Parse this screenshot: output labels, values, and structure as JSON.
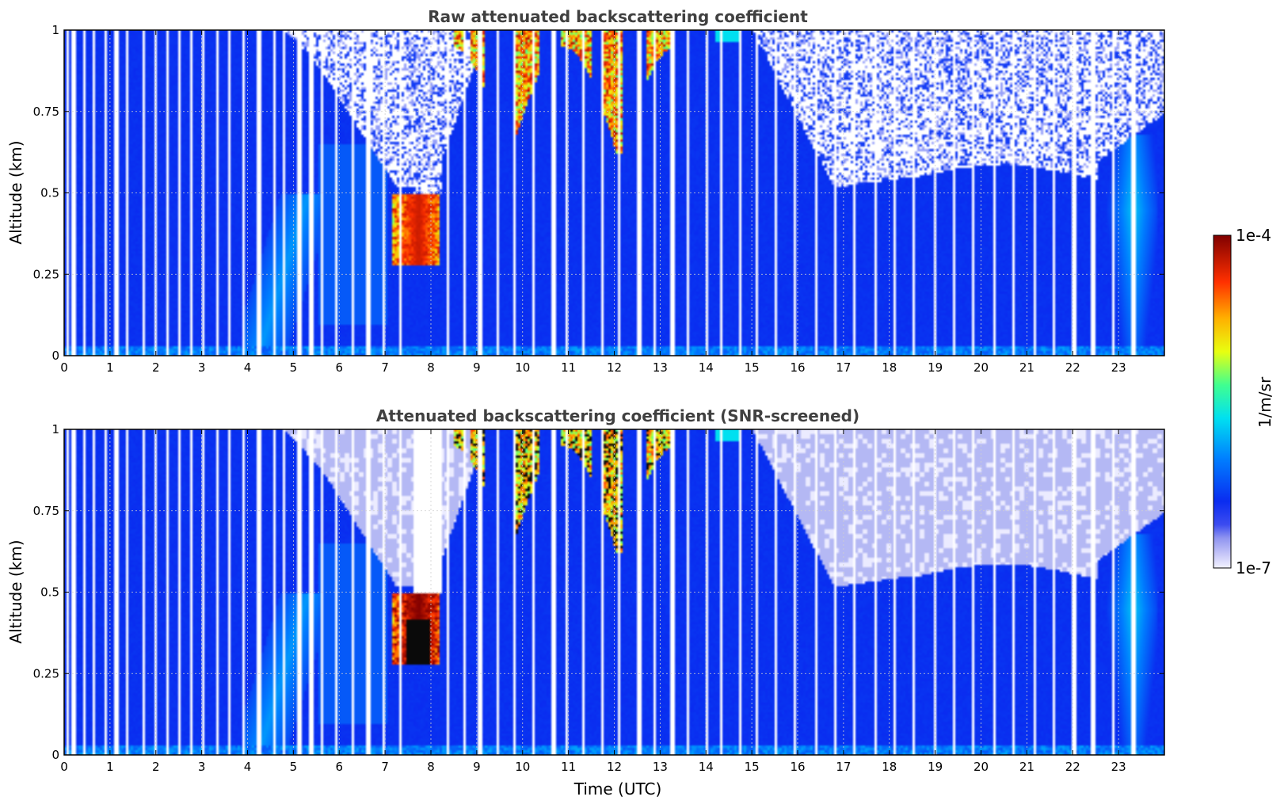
{
  "chart_data": [
    {
      "type": "heatmap",
      "title": "Raw attenuated backscattering coefficient",
      "xlabel": "",
      "ylabel": "Altitude (km)",
      "xlim": [
        0,
        24
      ],
      "ylim": [
        0,
        1
      ],
      "xticks": [
        "0",
        "1",
        "2",
        "3",
        "4",
        "5",
        "6",
        "7",
        "8",
        "9",
        "10",
        "11",
        "12",
        "13",
        "14",
        "15",
        "16",
        "17",
        "18",
        "19",
        "20",
        "21",
        "22",
        "23"
      ],
      "yticks": [
        "0",
        "0.25",
        "0.5",
        "0.75",
        "1"
      ],
      "grid": true,
      "features": [
        {
          "name": "background",
          "level": 0.25
        },
        {
          "name": "cloud-layer",
          "x": [
            7.1,
            8.1
          ],
          "y": [
            0.28,
            0.5
          ],
          "level": 0.92
        },
        {
          "name": "cloud-tops",
          "x": [
            8.4,
            13.2
          ],
          "y": [
            0.55,
            1.0
          ],
          "level": 0.9
        },
        {
          "name": "aerosol-plume",
          "x": [
            4.0,
            5.5
          ],
          "y": [
            0.15,
            0.5
          ],
          "level": 0.38
        },
        {
          "name": "aerosol-evening",
          "x": [
            22.8,
            23.8
          ],
          "y": [
            0.1,
            0.65
          ],
          "level": 0.42
        }
      ]
    },
    {
      "type": "heatmap",
      "title": "Attenuated backscattering coefficient (SNR-screened)",
      "xlabel": "Time (UTC)",
      "ylabel": "Altitude (km)",
      "xlim": [
        0,
        24
      ],
      "ylim": [
        0,
        1
      ],
      "xticks": [
        "0",
        "1",
        "2",
        "3",
        "4",
        "5",
        "6",
        "7",
        "8",
        "9",
        "10",
        "11",
        "12",
        "13",
        "14",
        "15",
        "16",
        "17",
        "18",
        "19",
        "20",
        "21",
        "22",
        "23"
      ],
      "yticks": [
        "0",
        "0.25",
        "0.5",
        "0.75",
        "1"
      ],
      "grid": true,
      "features": [
        {
          "name": "background",
          "level": 0.25
        },
        {
          "name": "cloud-layer",
          "x": [
            7.1,
            8.1
          ],
          "y": [
            0.28,
            0.5
          ],
          "level": 1.0
        },
        {
          "name": "cloud-tops",
          "x": [
            8.4,
            13.2
          ],
          "y": [
            0.55,
            1.0
          ],
          "level": 1.0
        },
        {
          "name": "aerosol-plume",
          "x": [
            4.0,
            5.5
          ],
          "y": [
            0.15,
            0.5
          ],
          "level": 0.38
        },
        {
          "name": "aerosol-evening",
          "x": [
            22.8,
            23.8
          ],
          "y": [
            0.1,
            0.65
          ],
          "level": 0.42
        }
      ]
    }
  ],
  "colorbar": {
    "label": "1/m/sr",
    "min_label": "1e-7",
    "max_label": "1e-4",
    "colormap": "jet"
  },
  "colors": {
    "background_blue": "#0a2cf0",
    "noise_white": "#ffffff",
    "noise_lavender": "#b4b8f4"
  }
}
